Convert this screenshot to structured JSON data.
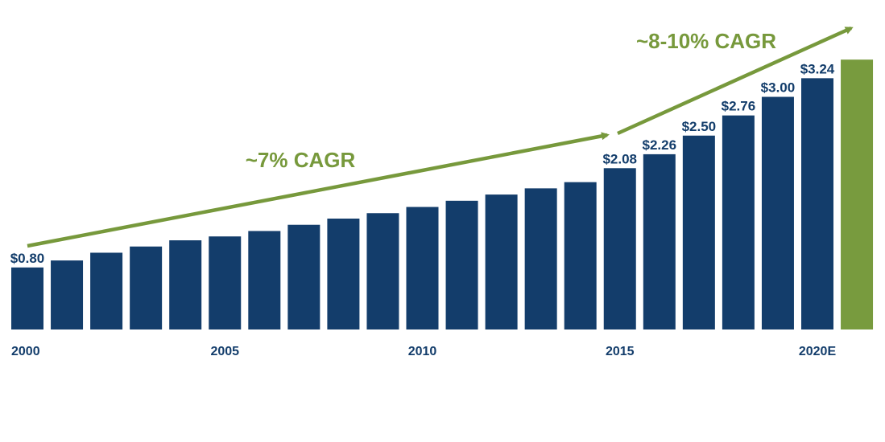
{
  "chart_data": {
    "type": "bar",
    "title": "",
    "xlabel": "",
    "ylabel": "",
    "categories": [
      "2000",
      "2001",
      "2002",
      "2003",
      "2004",
      "2005",
      "2006",
      "2007",
      "2008",
      "2009",
      "2010",
      "2011",
      "2012",
      "2013",
      "2014",
      "2015",
      "2016",
      "2017",
      "2018",
      "2019",
      "2020E"
    ],
    "values": [
      0.8,
      0.89,
      0.99,
      1.07,
      1.15,
      1.2,
      1.27,
      1.35,
      1.43,
      1.5,
      1.58,
      1.66,
      1.74,
      1.82,
      1.9,
      2.08,
      2.26,
      2.5,
      2.76,
      3.0,
      3.24
    ],
    "extra_bar": {
      "label": "",
      "value": 3.48,
      "color": "#789b3e"
    },
    "data_labels": [
      "$0.80",
      "",
      "",
      "",
      "",
      "",
      "",
      "",
      "",
      "",
      "",
      "",
      "",
      "",
      "",
      "$2.08",
      "$2.26",
      "$2.50",
      "$2.76",
      "$3.00",
      "$3.24"
    ],
    "tick_labels": [
      {
        "index": 0,
        "text": "2000"
      },
      {
        "index": 5,
        "text": "2005"
      },
      {
        "index": 10,
        "text": "2010"
      },
      {
        "index": 15,
        "text": "2015"
      },
      {
        "index": 20,
        "text": "2020E"
      }
    ],
    "ylim": [
      0,
      3.5
    ],
    "grid": false,
    "annotations": [
      {
        "text": "~7% CAGR",
        "from_index": 0,
        "to_index": 15
      },
      {
        "text": "~8-10% CAGR",
        "from_index": 15,
        "to_index": 21
      }
    ],
    "colors": {
      "bar": "#133d6b",
      "projection": "#789b3e",
      "arrow": "#77993c",
      "text": "#133d6b"
    }
  }
}
